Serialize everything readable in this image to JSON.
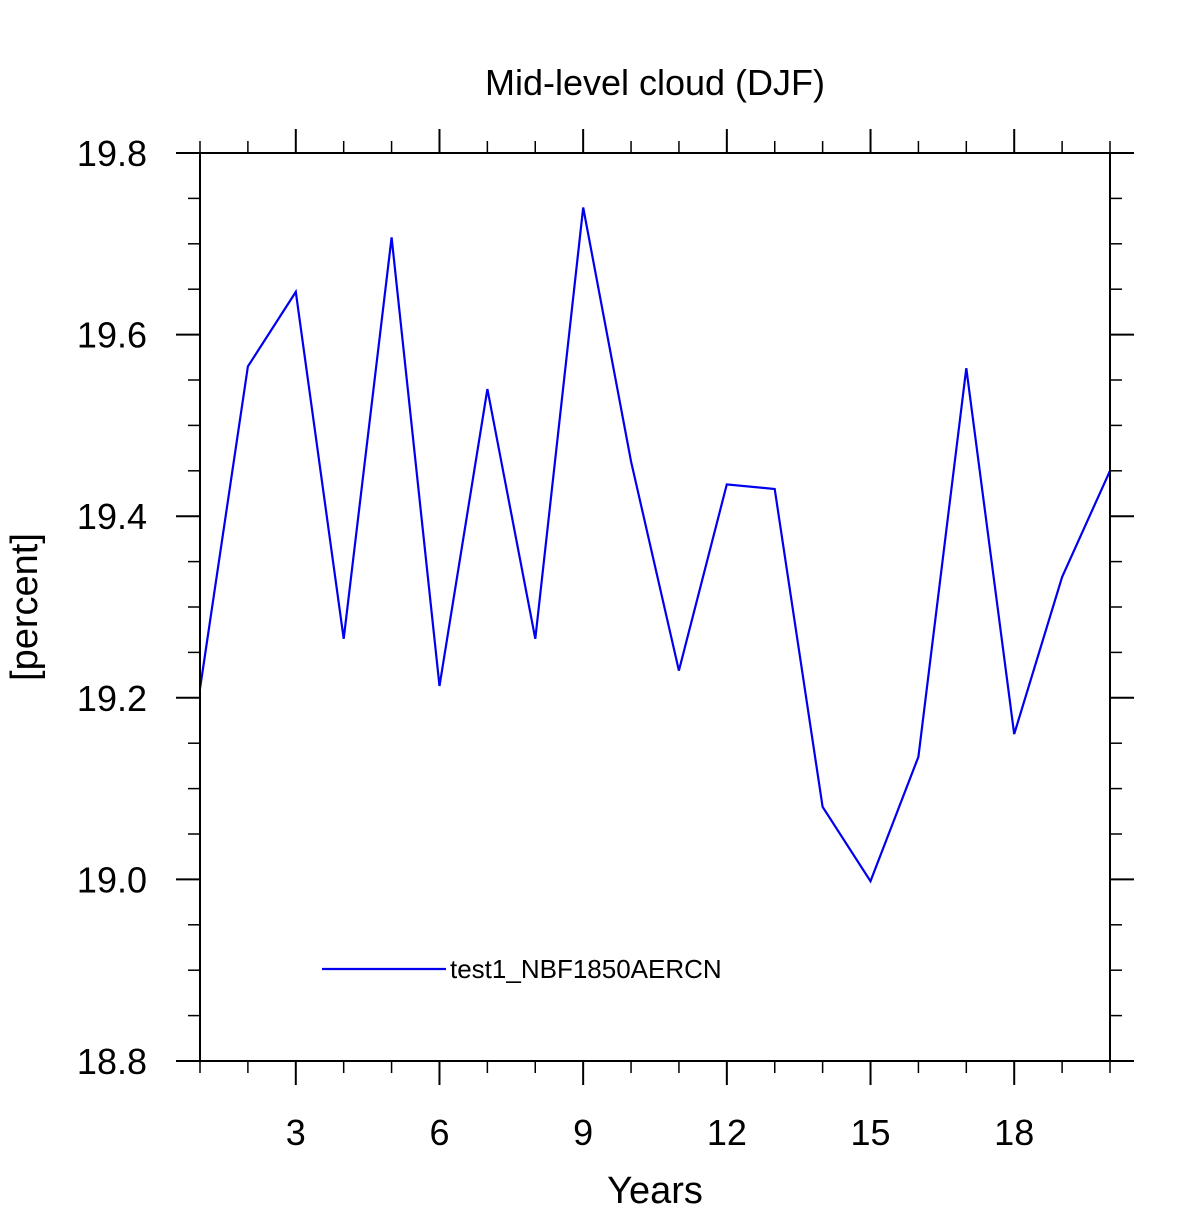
{
  "chart_data": {
    "type": "line",
    "title": "Mid-level cloud (DJF)",
    "xlabel": "Years",
    "ylabel": "[percent]",
    "xlim": [
      1,
      20
    ],
    "ylim": [
      18.8,
      19.8
    ],
    "xticks": [
      3,
      6,
      9,
      12,
      15,
      18
    ],
    "xtick_labels": [
      "3",
      "6",
      "9",
      "12",
      "15",
      "18"
    ],
    "yticks": [
      18.8,
      19.0,
      19.2,
      19.4,
      19.6,
      19.8
    ],
    "ytick_labels": [
      "18.8",
      "19.0",
      "19.2",
      "19.4",
      "19.6",
      "19.8"
    ],
    "x_minor_step": 1,
    "y_minor_step": 0.05,
    "grid": false,
    "legend_position": "bottom-left",
    "x": [
      1,
      2,
      3,
      4,
      5,
      6,
      7,
      8,
      9,
      10,
      11,
      12,
      13,
      14,
      15,
      16,
      17,
      18,
      19,
      20
    ],
    "series": [
      {
        "name": "test1_NBF1850AERCN",
        "color": "#0000ee",
        "values": [
          19.21,
          19.565,
          19.647,
          19.265,
          19.707,
          19.213,
          19.54,
          19.265,
          19.74,
          19.46,
          19.23,
          19.435,
          19.43,
          19.08,
          18.998,
          19.135,
          19.563,
          19.16,
          19.333,
          19.45
        ]
      }
    ]
  }
}
